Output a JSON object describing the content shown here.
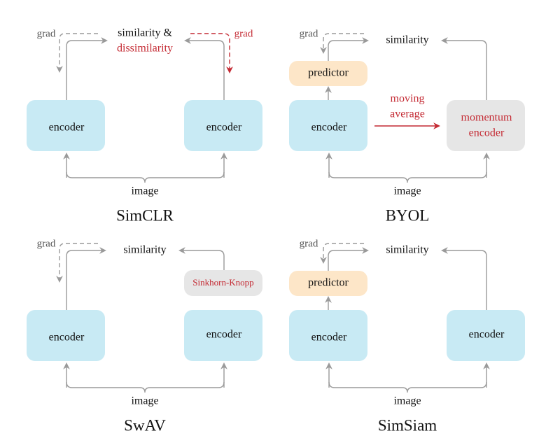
{
  "colors": {
    "encoder": "#c8eaf4",
    "predictor": "#fde6c8",
    "momentum": "#e6e6e6",
    "accent_red": "#c42a33",
    "line_gray": "#9a9a9a"
  },
  "panels": [
    {
      "title": "SimCLR",
      "top_label": "similarity &",
      "top_label_red": "dissimilarity",
      "left_box": "encoder",
      "right_box": "encoder",
      "grad_left": "grad",
      "grad_right": "grad",
      "input": "image"
    },
    {
      "title": "BYOL",
      "top_label": "similarity",
      "left_box": "encoder",
      "predictor": "predictor",
      "right_box_line1": "momentum",
      "right_box_line2": "encoder",
      "moving_line1": "moving",
      "moving_line2": "average",
      "grad_left": "grad",
      "input": "image"
    },
    {
      "title": "SwAV",
      "top_label": "similarity",
      "left_box": "encoder",
      "right_box": "encoder",
      "right_extra": "Sinkhorn-Knopp",
      "grad_left": "grad",
      "input": "image"
    },
    {
      "title": "SimSiam",
      "top_label": "similarity",
      "left_box": "encoder",
      "predictor": "predictor",
      "right_box": "encoder",
      "grad_left": "grad",
      "input": "image"
    }
  ]
}
